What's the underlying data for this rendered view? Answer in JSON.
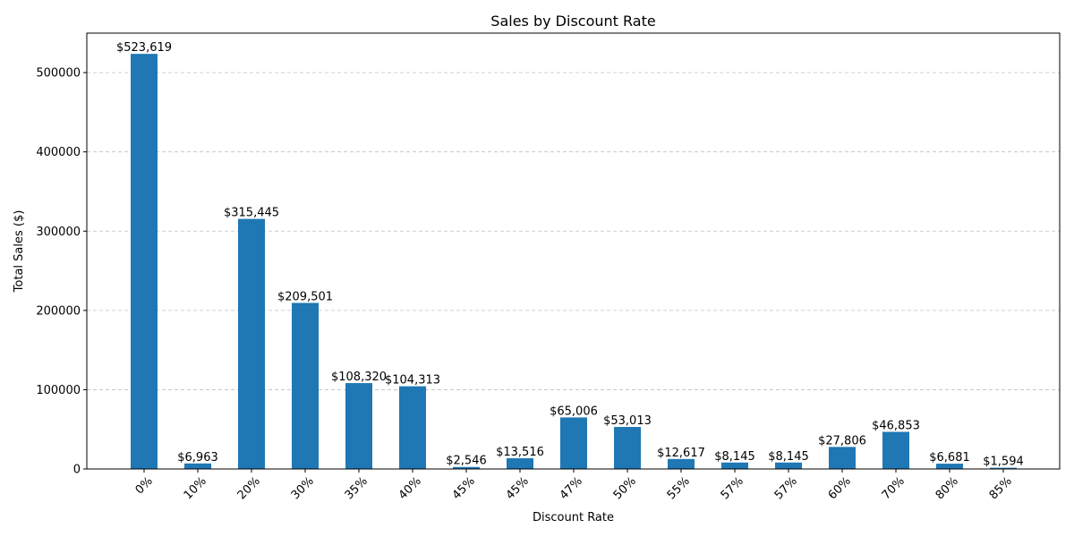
{
  "chart_data": {
    "type": "bar",
    "title": "Sales by Discount Rate",
    "xlabel": "Discount Rate",
    "ylabel": "Total Sales ($)",
    "categories": [
      "0%",
      "10%",
      "20%",
      "30%",
      "35%",
      "40%",
      "45%",
      "45%",
      "47%",
      "50%",
      "55%",
      "57%",
      "57%",
      "60%",
      "70%",
      "80%",
      "85%"
    ],
    "values": [
      523619,
      6963,
      315445,
      209501,
      108320,
      104313,
      2546,
      13516,
      65006,
      53013,
      12617,
      8145,
      8145,
      27806,
      46853,
      6681,
      1594
    ],
    "data_labels": [
      "$523,619",
      "$6,963",
      "$315,445",
      "$209,501",
      "$108,320",
      "$104,313",
      "$2,546",
      "$13,516",
      "$65,006",
      "$53,013",
      "$12,617",
      "$8,145",
      "$8,145",
      "$27,806",
      "$46,853",
      "$6,681",
      "$1,594"
    ],
    "yticks": [
      0,
      100000,
      200000,
      300000,
      400000,
      500000
    ],
    "ytick_labels": [
      "0",
      "100000",
      "200000",
      "300000",
      "400000",
      "500000"
    ],
    "ylim": [
      0,
      549800
    ],
    "grid": "y-dashed",
    "bar_color": "#1f77b4"
  }
}
